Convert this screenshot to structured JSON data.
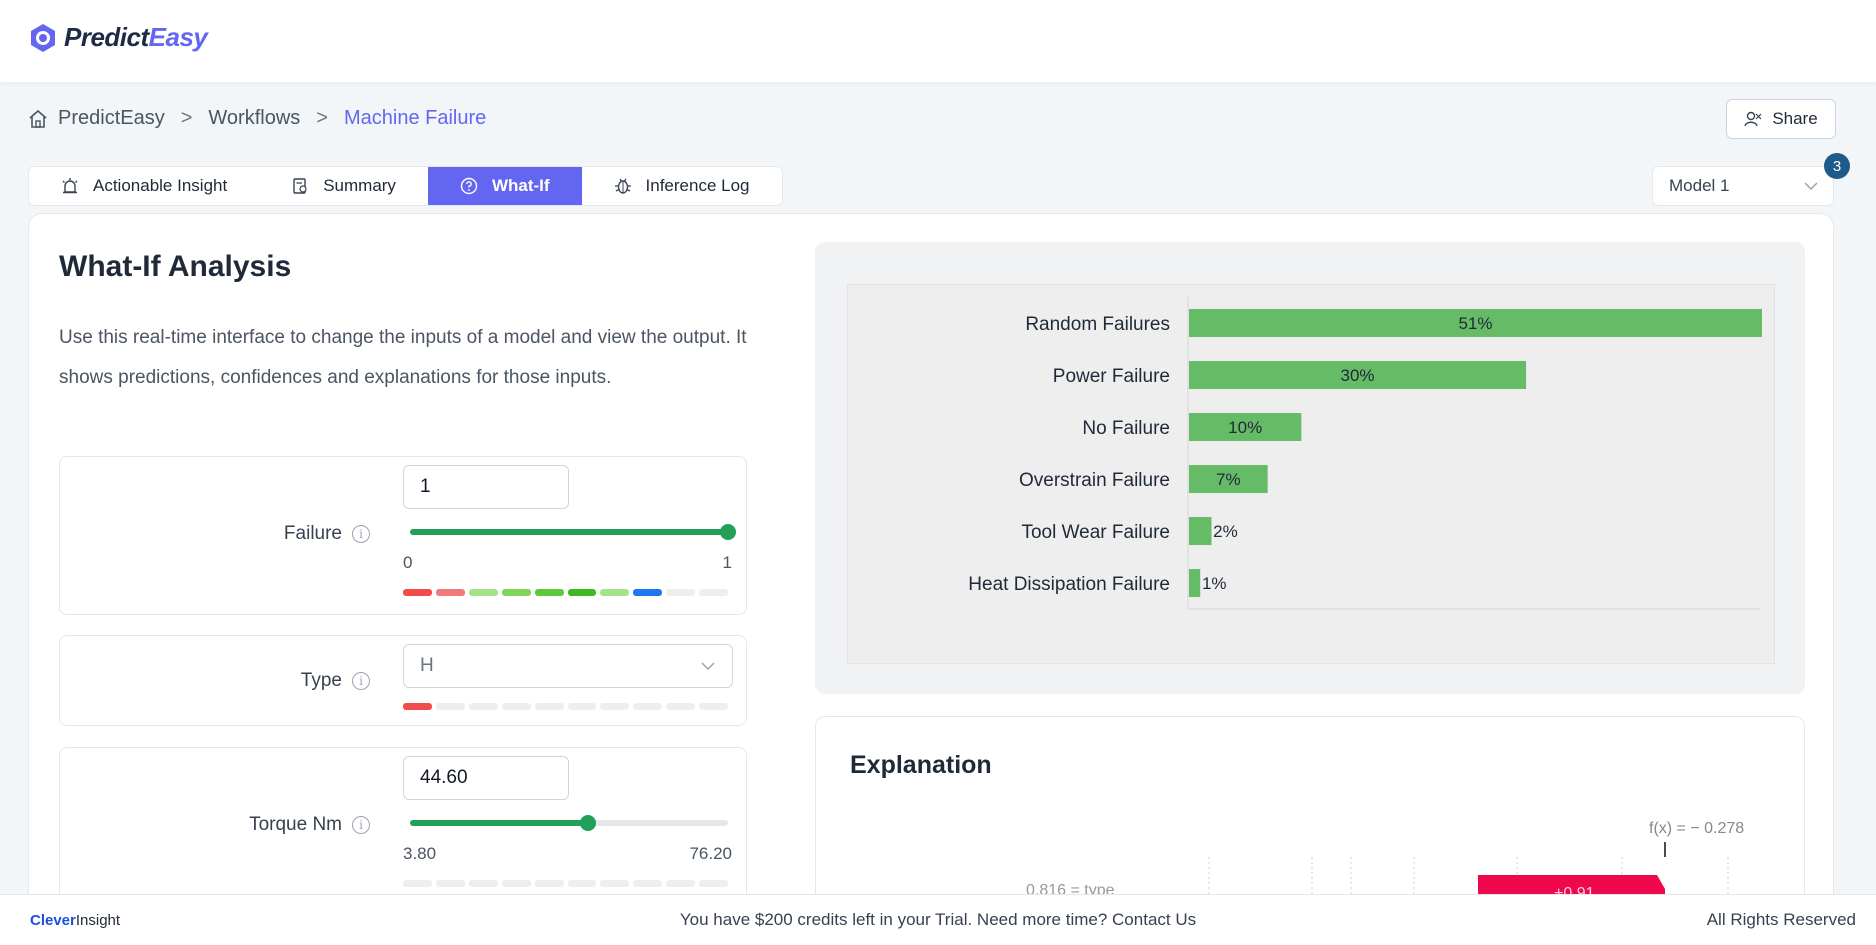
{
  "app": {
    "name_main": "Predict",
    "name_accent": "Easy",
    "brand_color": "#6366f1"
  },
  "breadcrumb": [
    "PredictEasy",
    "Workflows",
    "Machine Failure"
  ],
  "header": {
    "share_label": "Share"
  },
  "tabs": [
    {
      "label": "Actionable Insight",
      "icon": "alarm-icon"
    },
    {
      "label": "Summary",
      "icon": "report-icon"
    },
    {
      "label": "What-If",
      "icon": "question-circle-icon",
      "active": true
    },
    {
      "label": "Inference Log",
      "icon": "bug-icon"
    }
  ],
  "model_select": {
    "value": "Model 1",
    "badge": "3"
  },
  "whatif": {
    "title": "What-If Analysis",
    "description": "Use this real-time interface to change the inputs of a model and view the output. It shows predictions, confidences and explanations for those inputs."
  },
  "fields": [
    {
      "label": "Failure",
      "value": "1",
      "min": "0",
      "max": "1",
      "level": 1.0,
      "segments": [
        "#f24b4b",
        "#f27a7a",
        "#a5e38a",
        "#7fd65a",
        "#5cc93a",
        "#3bbb21",
        "#a5e38a",
        "#1f77f0",
        "#eeeeee",
        "#eeeeee"
      ]
    },
    {
      "label": "Type",
      "value": "H",
      "segments": [
        "#f24b4b",
        "#eeeeee",
        "#eeeeee",
        "#eeeeee",
        "#eeeeee",
        "#eeeeee",
        "#eeeeee",
        "#eeeeee",
        "#eeeeee",
        "#eeeeee"
      ]
    },
    {
      "label": "Torque Nm",
      "value": "44.60",
      "min": "3.80",
      "max": "76.20",
      "level": 0.56,
      "segments": [
        "#eeeeee",
        "#eeeeee",
        "#eeeeee",
        "#eeeeee",
        "#eeeeee",
        "#eeeeee",
        "#eeeeee",
        "#eeeeee",
        "#eeeeee",
        "#eeeeee"
      ]
    }
  ],
  "chart_data": {
    "type": "bar",
    "orientation": "horizontal",
    "categories": [
      "Random Failures",
      "Power Failure",
      "No Failure",
      "Overstrain Failure",
      "Tool Wear Failure",
      "Heat Dissipation Failure"
    ],
    "values": [
      51,
      30,
      10,
      7,
      2,
      1
    ],
    "value_labels": [
      "51%",
      "30%",
      "10%",
      "7%",
      "2%",
      "1%"
    ],
    "xlim": [
      0,
      51
    ],
    "bar_color": "#66bb66"
  },
  "explanation": {
    "title": "Explanation",
    "fx_text": "f(x) = − 0.278",
    "row_label": "0.816 = type",
    "contribution_label": "+0.91",
    "contribution_color": "#f0084d"
  },
  "footer": {
    "brand_bold": "Clever",
    "brand_rest": "Insight",
    "message": "You have $200 credits left in your Trial. Need more time? Contact Us",
    "rights": "All Rights Reserved"
  }
}
